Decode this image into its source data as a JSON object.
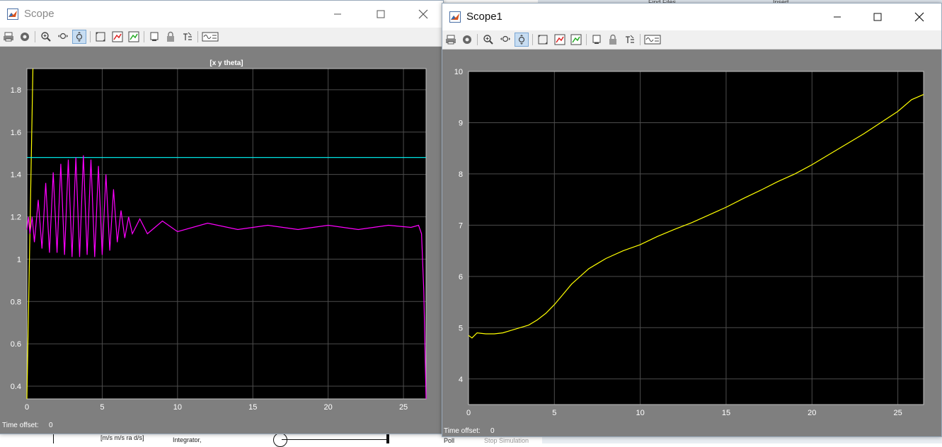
{
  "background": {
    "label_units": "[m/s m/s ra d/s]",
    "label_integrator": "Integrator,",
    "label_poll": "Poll",
    "label_stop": "Stop Simulation",
    "strip_find": "Find Files",
    "strip_insert": "Insert"
  },
  "left_window": {
    "title": "Scope",
    "controls": [
      "minimize-icon",
      "maximize-icon",
      "close-icon"
    ],
    "toolbar": [
      "print-icon",
      "settings-icon",
      "zoom-in-icon",
      "zoom-x-icon",
      "zoom-y-icon",
      "autoscale-icon",
      "save-axes-icon",
      "restore-axes-icon",
      "highlight-block-icon",
      "lock-icon",
      "signal-select-icon",
      "style-icon"
    ],
    "time_offset_label": "Time offset:",
    "time_offset_value": "0"
  },
  "right_window": {
    "title": "Scope1",
    "controls": [
      "minimize-icon",
      "maximize-icon",
      "close-icon"
    ],
    "toolbar": [
      "print-icon",
      "settings-icon",
      "zoom-in-icon",
      "zoom-x-icon",
      "zoom-y-icon",
      "autoscale-icon",
      "save-axes-icon",
      "restore-axes-icon",
      "highlight-block-icon",
      "lock-icon",
      "signal-select-icon",
      "style-icon"
    ],
    "time_offset_label": "Time offset:",
    "time_offset_value": "0"
  },
  "colors": {
    "plot_bg": "#000000",
    "figure_bg": "#7f7f7f",
    "grid": "#4d4d4d",
    "yellow": "#ffff00",
    "cyan": "#00ffff",
    "magenta": "#ff00ff",
    "axis_text": "#ffffff"
  },
  "chart_data": [
    {
      "type": "line",
      "title": "[x y theta]",
      "xlabel": "",
      "ylabel": "",
      "xlim": [
        0,
        26.5
      ],
      "ylim": [
        0.34,
        1.9
      ],
      "xticks": [
        "0",
        "5",
        "10",
        "15",
        "20",
        "25"
      ],
      "yticks": [
        "0.4",
        "0.6",
        "0.8",
        "1",
        "1.2",
        "1.4",
        "1.6",
        "1.8"
      ],
      "grid": true,
      "series": [
        {
          "color": "#ffff00",
          "x": [
            0.0,
            0.4
          ],
          "y": [
            0.34,
            1.9
          ]
        },
        {
          "color": "#00ffff",
          "x": [
            0.0,
            26.5
          ],
          "y": [
            1.48,
            1.48
          ]
        },
        {
          "color": "#ff00ff",
          "x": [
            0.0,
            0.1,
            0.2,
            0.35,
            0.5,
            0.75,
            1.0,
            1.25,
            1.5,
            1.75,
            2.0,
            2.25,
            2.5,
            2.75,
            3.0,
            3.25,
            3.5,
            3.75,
            4.0,
            4.25,
            4.5,
            4.75,
            5.0,
            5.25,
            5.5,
            5.75,
            6.0,
            6.25,
            6.5,
            6.75,
            7.0,
            7.5,
            8.0,
            9.0,
            10.0,
            12.0,
            14.0,
            16.0,
            18.0,
            20.0,
            22.0,
            24.0,
            25.5,
            26.0,
            26.2,
            26.35,
            26.5
          ],
          "y": [
            1.14,
            1.2,
            1.12,
            1.2,
            1.08,
            1.28,
            1.05,
            1.36,
            1.03,
            1.41,
            1.03,
            1.45,
            1.02,
            1.47,
            1.01,
            1.48,
            1.01,
            1.49,
            1.02,
            1.47,
            1.01,
            1.44,
            1.02,
            1.4,
            1.04,
            1.33,
            1.08,
            1.23,
            1.1,
            1.2,
            1.12,
            1.19,
            1.12,
            1.18,
            1.13,
            1.17,
            1.14,
            1.16,
            1.14,
            1.16,
            1.14,
            1.16,
            1.15,
            1.16,
            1.12,
            0.85,
            0.34
          ]
        }
      ]
    },
    {
      "type": "line",
      "title": "",
      "xlabel": "",
      "ylabel": "",
      "xlim": [
        0,
        26.5
      ],
      "ylim": [
        3.5,
        10
      ],
      "xticks": [
        "0",
        "5",
        "10",
        "15",
        "20",
        "25"
      ],
      "yticks": [
        "4",
        "5",
        "6",
        "7",
        "8",
        "9",
        "10"
      ],
      "grid": true,
      "series": [
        {
          "color": "#ffff00",
          "x": [
            0.0,
            0.2,
            0.5,
            1.0,
            1.5,
            2.0,
            2.5,
            3.0,
            3.5,
            4.0,
            4.5,
            5.0,
            5.5,
            6.0,
            6.5,
            7.0,
            7.5,
            8.0,
            9.0,
            10.0,
            11.0,
            12.0,
            13.0,
            14.0,
            15.0,
            16.0,
            17.0,
            18.0,
            19.0,
            20.0,
            21.0,
            22.0,
            23.0,
            24.0,
            25.0,
            25.8,
            26.5
          ],
          "y": [
            4.85,
            4.8,
            4.9,
            4.88,
            4.88,
            4.9,
            4.95,
            5.0,
            5.05,
            5.15,
            5.28,
            5.45,
            5.65,
            5.85,
            6.0,
            6.15,
            6.25,
            6.35,
            6.5,
            6.62,
            6.78,
            6.92,
            7.05,
            7.2,
            7.35,
            7.52,
            7.68,
            7.85,
            8.0,
            8.18,
            8.38,
            8.58,
            8.78,
            9.0,
            9.22,
            9.45,
            9.55
          ]
        }
      ]
    }
  ]
}
